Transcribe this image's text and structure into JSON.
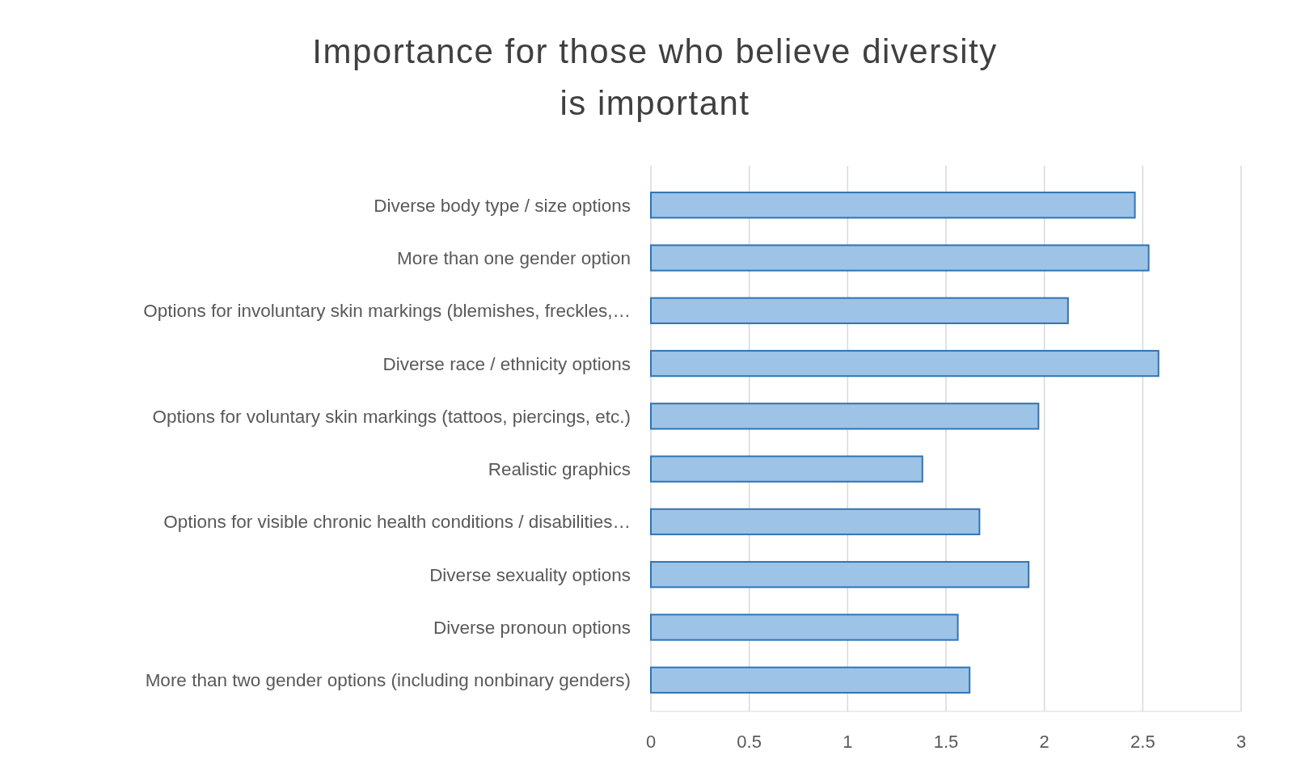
{
  "chart_data": {
    "type": "bar",
    "orientation": "horizontal",
    "title": "Importance for those who believe diversity is important",
    "categories": [
      "Diverse body type / size options",
      "More than one gender option",
      "Options for involuntary skin markings (blemishes, freckles,…",
      "Diverse race / ethnicity options",
      "Options for voluntary skin markings (tattoos, piercings, etc.)",
      "Realistic graphics",
      "Options for visible chronic health conditions / disabilities…",
      "Diverse sexuality options",
      "Diverse pronoun options",
      "More than two gender options (including nonbinary genders)"
    ],
    "values": [
      2.46,
      2.53,
      2.12,
      2.58,
      1.97,
      1.38,
      1.67,
      1.92,
      1.56,
      1.62
    ],
    "color": "#9dc3e6",
    "xlim": [
      0,
      3
    ],
    "xticks": [
      0,
      0.5,
      1,
      1.5,
      2,
      2.5,
      3
    ],
    "grid": "x"
  }
}
